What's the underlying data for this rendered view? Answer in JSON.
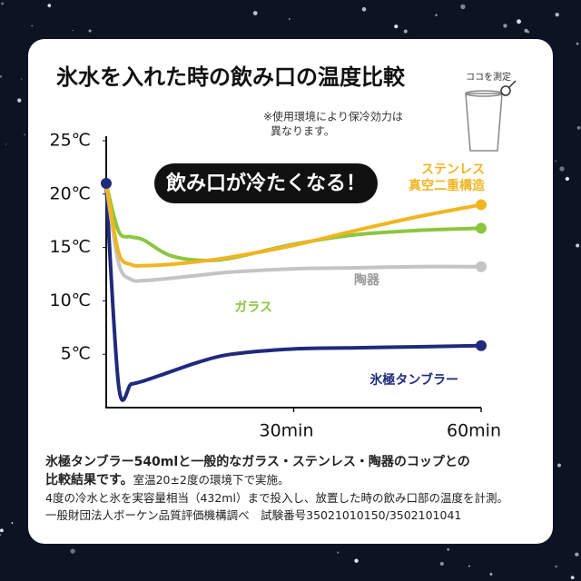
{
  "chart_data": {
    "type": "line",
    "title": "氷水を入れた時の飲み口の温度比較",
    "note": [
      "※使用環境により保冷効力は",
      "異なります。"
    ],
    "measure_label": "ココを測定",
    "badge": "飲み口が冷たくなる！",
    "x": [
      0,
      2,
      4,
      6,
      10,
      15,
      20,
      30,
      40,
      50,
      60
    ],
    "xlim": [
      0,
      60
    ],
    "xticks": [
      {
        "value": 30,
        "label": "30min"
      },
      {
        "value": 60,
        "label": "60min"
      }
    ],
    "ylim": [
      0,
      25
    ],
    "yticks": [
      {
        "value": 5,
        "label": "5℃"
      },
      {
        "value": 10,
        "label": "10℃"
      },
      {
        "value": 15,
        "label": "15℃"
      },
      {
        "value": 20,
        "label": "20℃"
      },
      {
        "value": 25,
        "label": "25℃"
      }
    ],
    "series": [
      {
        "name": "氷極タンブラー",
        "color": "#1f2a7c",
        "values": [
          21,
          2.0,
          2.2,
          2.5,
          3.3,
          4.3,
          5.0,
          5.5,
          5.6,
          5.7,
          5.8
        ]
      },
      {
        "name": "陶器",
        "color": "#c4c4c4",
        "values": [
          21,
          13.5,
          12.0,
          11.9,
          12.1,
          12.4,
          12.7,
          13.0,
          13.1,
          13.2,
          13.2
        ]
      },
      {
        "name": "ガラス",
        "color": "#8cc63f",
        "values": [
          21,
          16.5,
          16.0,
          15.7,
          14.3,
          13.8,
          14.0,
          15.3,
          16.2,
          16.6,
          16.8
        ]
      },
      {
        "name": "ステンレス\n真空二重構造",
        "color": "#f0b521",
        "values": [
          21,
          14.5,
          13.4,
          13.3,
          13.4,
          13.7,
          14.1,
          15.2,
          16.6,
          17.9,
          19.0
        ]
      }
    ]
  },
  "footnote": [
    "氷極タンブラー540mlと一般的なガラス・ステンレス・陶器のコップとの",
    "比較結果です。",
    "室温20±2度の環境下で実施。",
    "4度の冷水と氷を実容量相当（432ml）まで投入し、放置した時の飲み口部の温度を計測。",
    "一般財団法人ボーケン品質評価機構調べ　試験番号35021010150/3502101041"
  ]
}
